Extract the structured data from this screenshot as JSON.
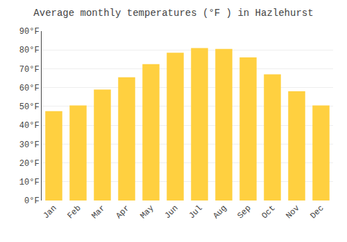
{
  "chart_data": {
    "type": "bar",
    "title": "Average monthly temperatures (°F ) in Hazlehurst",
    "categories": [
      "Jan",
      "Feb",
      "Mar",
      "Apr",
      "May",
      "Jun",
      "Jul",
      "Aug",
      "Sep",
      "Oct",
      "Nov",
      "Dec"
    ],
    "values": [
      47.5,
      50.5,
      59,
      65.5,
      72.5,
      78.5,
      81,
      80.5,
      76,
      67,
      58,
      50.5
    ],
    "color": "#FFD040",
    "ylim": [
      0,
      90
    ],
    "yticks": [
      {
        "value": 0,
        "label": "0°F"
      },
      {
        "value": 10,
        "label": "10°F"
      },
      {
        "value": 20,
        "label": "20°F"
      },
      {
        "value": 30,
        "label": "30°F"
      },
      {
        "value": 40,
        "label": "40°F"
      },
      {
        "value": 50,
        "label": "50°F"
      },
      {
        "value": 60,
        "label": "60°F"
      },
      {
        "value": 70,
        "label": "70°F"
      },
      {
        "value": 80,
        "label": "80°F"
      },
      {
        "value": 90,
        "label": "90°F"
      }
    ],
    "grid": true
  }
}
